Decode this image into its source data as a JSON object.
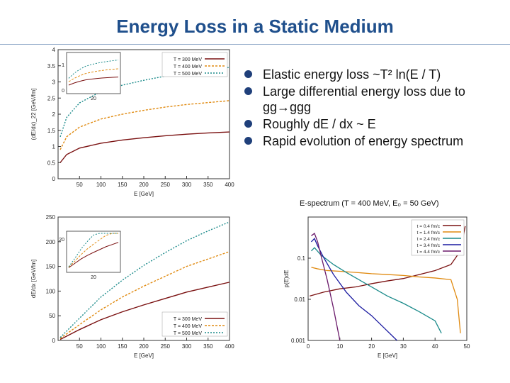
{
  "slide": {
    "title": "Energy Loss in a Static Medium",
    "bullets": [
      "Elastic energy loss ~T² ln(E / T)",
      "Large differential energy loss due to gg→ggg",
      "Roughly dE / dx ~ E",
      "Rapid evolution of energy spectrum"
    ],
    "spectrum_caption": "E-spectrum (T = 400 MeV, E₀ = 50 GeV)"
  },
  "colors": {
    "title": "#1f4f8c",
    "bullet": "#1f3f7a",
    "t300": "#7a1010",
    "t400": "#e08a10",
    "t500": "#1a8a8a"
  },
  "chart_data": [
    {
      "type": "line",
      "ylabel": "(dE/dx)_22 [GeV/fm]",
      "xlabel": "E [GeV]",
      "xlim": [
        0,
        400
      ],
      "ylim": [
        0,
        4
      ],
      "xticks": [
        "50",
        "100",
        "150",
        "200",
        "250",
        "300",
        "350",
        "400"
      ],
      "yticks": [
        "0",
        "0.5",
        "1",
        "1.5",
        "2",
        "2.5",
        "3",
        "3.5",
        "4"
      ],
      "legend": [
        "T = 300 MeV",
        "T = 400 MeV",
        "T = 500 MeV"
      ],
      "inset": {
        "xtick": "20",
        "yticks": [
          "0",
          "1"
        ]
      },
      "series": [
        {
          "name": "T = 300 MeV",
          "x": [
            5,
            20,
            50,
            100,
            150,
            200,
            250,
            300,
            350,
            400
          ],
          "y": [
            0.5,
            0.75,
            0.95,
            1.1,
            1.2,
            1.27,
            1.33,
            1.38,
            1.42,
            1.45
          ]
        },
        {
          "name": "T = 400 MeV",
          "x": [
            5,
            20,
            50,
            100,
            150,
            200,
            250,
            300,
            350,
            400
          ],
          "y": [
            0.9,
            1.3,
            1.6,
            1.85,
            2.0,
            2.12,
            2.22,
            2.3,
            2.36,
            2.42
          ]
        },
        {
          "name": "T = 500 MeV",
          "x": [
            5,
            20,
            50,
            100,
            150,
            200,
            250,
            300,
            350,
            400
          ],
          "y": [
            1.3,
            1.9,
            2.35,
            2.7,
            2.9,
            3.05,
            3.18,
            3.28,
            3.37,
            3.45
          ]
        }
      ]
    },
    {
      "type": "line",
      "ylabel": "dE/dx [GeV/fm]",
      "xlabel": "E [GeV]",
      "xlim": [
        0,
        400
      ],
      "ylim": [
        0,
        250
      ],
      "xticks": [
        "50",
        "100",
        "150",
        "200",
        "250",
        "300",
        "350",
        "400"
      ],
      "yticks": [
        "0",
        "50",
        "100",
        "150",
        "200",
        "250"
      ],
      "legend": [
        "T = 300 MeV",
        "T = 400 MeV",
        "T = 500 MeV"
      ],
      "inset": {
        "xtick": "20",
        "yticks": [
          "20"
        ]
      },
      "series": [
        {
          "name": "T = 300 MeV",
          "x": [
            5,
            50,
            100,
            150,
            200,
            250,
            300,
            350,
            400
          ],
          "y": [
            2,
            22,
            42,
            58,
            72,
            85,
            98,
            108,
            118
          ]
        },
        {
          "name": "T = 400 MeV",
          "x": [
            5,
            50,
            100,
            150,
            200,
            250,
            300,
            350,
            400
          ],
          "y": [
            4,
            32,
            62,
            88,
            110,
            130,
            150,
            165,
            180
          ]
        },
        {
          "name": "T = 500 MeV",
          "x": [
            5,
            50,
            100,
            150,
            200,
            250,
            300,
            350,
            400
          ],
          "y": [
            6,
            45,
            88,
            122,
            152,
            178,
            202,
            222,
            240
          ]
        }
      ]
    },
    {
      "type": "line",
      "scale": "log",
      "ylabel": "p(E)dE",
      "xlabel": "E [GeV]",
      "xlim": [
        0,
        50
      ],
      "ylim": [
        0.001,
        1
      ],
      "xticks": [
        "0",
        "10",
        "20",
        "30",
        "40",
        "50"
      ],
      "yticks": [
        "0.001",
        "0.01",
        "0.1"
      ],
      "legend": [
        "t = 0.4 fm/c",
        "t = 1.4 fm/c",
        "t = 2.4 fm/c",
        "t = 3.4 fm/c",
        "t = 4.4 fm/c"
      ],
      "series": [
        {
          "name": "t = 0.4 fm/c",
          "color": "#7a1010",
          "x": [
            0.5,
            5,
            10,
            15,
            20,
            25,
            30,
            35,
            40,
            45,
            48,
            49.5
          ],
          "y": [
            0.012,
            0.015,
            0.018,
            0.02,
            0.024,
            0.028,
            0.032,
            0.04,
            0.05,
            0.07,
            0.15,
            0.6
          ]
        },
        {
          "name": "t = 1.4 fm/c",
          "color": "#e08a10",
          "x": [
            1,
            3,
            6,
            10,
            15,
            20,
            25,
            30,
            35,
            40,
            45,
            47,
            48
          ],
          "y": [
            0.06,
            0.055,
            0.05,
            0.048,
            0.045,
            0.042,
            0.04,
            0.038,
            0.035,
            0.033,
            0.03,
            0.01,
            0.0015
          ]
        },
        {
          "name": "t = 2.4 fm/c",
          "color": "#1a8a8a",
          "x": [
            1,
            2,
            4,
            8,
            12,
            16,
            20,
            25,
            30,
            35,
            40,
            42
          ],
          "y": [
            0.15,
            0.18,
            0.12,
            0.07,
            0.045,
            0.03,
            0.02,
            0.012,
            0.008,
            0.005,
            0.003,
            0.0015
          ]
        },
        {
          "name": "t = 3.4 fm/c",
          "color": "#1a1aa0",
          "x": [
            1,
            2,
            3,
            5,
            8,
            12,
            16,
            20,
            24,
            28
          ],
          "y": [
            0.25,
            0.3,
            0.2,
            0.1,
            0.04,
            0.015,
            0.007,
            0.004,
            0.002,
            0.001
          ]
        },
        {
          "name": "t = 4.4 fm/c",
          "color": "#6a1a6a",
          "x": [
            1,
            2,
            3,
            4,
            6,
            8,
            10
          ],
          "y": [
            0.35,
            0.4,
            0.25,
            0.12,
            0.03,
            0.006,
            0.001
          ]
        }
      ]
    }
  ]
}
